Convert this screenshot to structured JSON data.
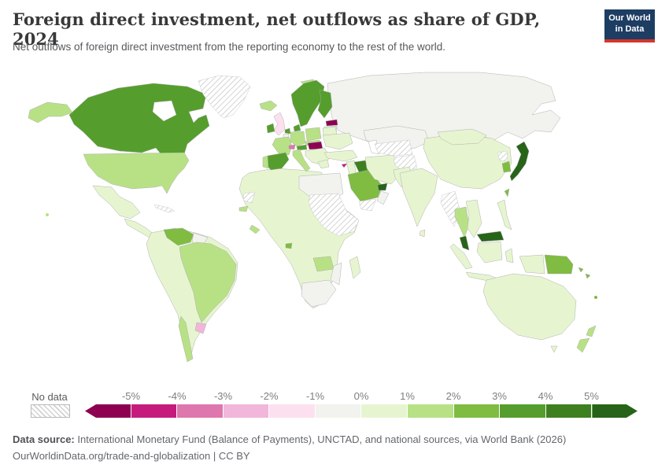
{
  "header": {
    "title": "Foreign direct investment, net outflows as share of GDP, 2024",
    "subtitle": "Net outflows of foreign direct investment from the reporting economy to the rest of the world.",
    "logo": {
      "line1": "Our World",
      "line2": "in Data"
    }
  },
  "legend": {
    "no_data_label": "No data",
    "ticks": [
      "-5%",
      "-4%",
      "-3%",
      "-2%",
      "-1%",
      "0%",
      "1%",
      "2%",
      "3%",
      "4%",
      "5%"
    ],
    "bins": [
      {
        "key": "lt-5",
        "label": "less than -5%",
        "color": "#8e0152"
      },
      {
        "key": "-5--4",
        "label": "-5% to -4%",
        "color": "#c51b7d"
      },
      {
        "key": "-4--3",
        "label": "-4% to -3%",
        "color": "#de77ae"
      },
      {
        "key": "-3--2",
        "label": "-3% to -2%",
        "color": "#f1b6da"
      },
      {
        "key": "-2--1",
        "label": "-2% to -1%",
        "color": "#fde0ef"
      },
      {
        "key": "-1-0",
        "label": "-1% to 0%",
        "color": "#f2f2ee"
      },
      {
        "key": "0-1",
        "label": "0% to 1%",
        "color": "#e6f5d0"
      },
      {
        "key": "1-2",
        "label": "1% to 2%",
        "color": "#b8e186"
      },
      {
        "key": "2-3",
        "label": "2% to 3%",
        "color": "#7fbc41"
      },
      {
        "key": "3-4",
        "label": "3% to 4%",
        "color": "#559e2d"
      },
      {
        "key": "4-5",
        "label": "4% to 5%",
        "color": "#3e8020"
      },
      {
        "key": "gt5",
        "label": "more than 5%",
        "color": "#276419"
      }
    ]
  },
  "chart_data": {
    "type": "choropleth_map",
    "title": "Foreign direct investment, net outflows as share of GDP, 2024",
    "metric": "FDI net outflows (% of GDP)",
    "year": "2024",
    "no_data_style": "hatched",
    "legend_position": "bottom",
    "country_bins": {
      "greenland": "nodata",
      "alaska": "1-2",
      "canada": "3-4",
      "usa": "1-2",
      "mexico": "0-1",
      "central-america": "0-1",
      "cuba": "nodata",
      "hawaii": "1-2",
      "south-america-other": "0-1",
      "venezuela": "2-3",
      "guyanas": "-1-0",
      "brazil": "1-2",
      "uruguay": "-3--2",
      "chile": "1-2",
      "iceland": "1-2",
      "svalbard": "1-2",
      "uk": "-2--1",
      "ireland": "3-4",
      "norway-sweden": "3-4",
      "finland": "3-4",
      "estonia": "lt-5",
      "latvia-lithuania": "0-1",
      "denmark": "3-4",
      "netherlands": "3-4",
      "belgium": "-1-0",
      "germany": "1-2",
      "poland": "1-2",
      "czechia-slovakia": "1-2",
      "france": "1-2",
      "switzerland": "-4--3",
      "austria": "3-4",
      "hungary": "lt-5",
      "italy": "1-2",
      "spain": "3-4",
      "portugal": "1-2",
      "greece": "0-1",
      "ukraine": "0-1",
      "belarus": "0-1",
      "balkans-other": "0-1",
      "russia": "-1-0",
      "kazakhstan": "-1-0",
      "turkey": "0-1",
      "cyprus": "-5--4",
      "levant": "0-1",
      "iraq": "4-5",
      "saudi-arabia": "2-3",
      "uae-qatar": "gt5",
      "yemen": "nodata",
      "oman": "-1-0",
      "iran": "0-1",
      "afghanistan": "nodata",
      "turkmenistan-uzbekistan": "nodata",
      "pakistan": "0-1",
      "india": "0-1",
      "sri-lanka": "0-1",
      "china": "0-1",
      "mongolia": "0-1",
      "japan": "gt5",
      "south-korea": "2-3",
      "north-korea": "nodata",
      "taiwan": "2-3",
      "myanmar": "nodata",
      "thailand": "1-2",
      "vietnam-cambodia-laos": "0-1",
      "malaysia-peninsular": "gt5",
      "malaysia-borneo": "gt5",
      "indonesia-sumatra": "0-1",
      "indonesia-java": "0-1",
      "indonesia-borneo": "0-1",
      "sulawesi": "0-1",
      "west-papua": "0-1",
      "papua-new-guinea": "2-3",
      "solomon-islands": "2-3",
      "philippines": "0-1",
      "australia": "0-1",
      "new-zealand": "1-2",
      "fiji": "2-3",
      "africa-other": "0-1",
      "libya-egypt": "-1-0",
      "sahel-horn": "nodata",
      "western-sahara": "nodata",
      "senegal": "1-2",
      "liberia": "1-2",
      "equatorial-guinea": "2-3",
      "zambia": "1-2",
      "mozambique": "-1-0",
      "south-africa": "-1-0",
      "madagascar": "0-1"
    }
  },
  "footer": {
    "source_label": "Data source:",
    "source_text": " International Monetary Fund (Balance of Payments), UNCTAD, and national sources, via World Bank (2026)",
    "note": "OurWorldinData.org/trade-and-globalization | CC BY"
  }
}
